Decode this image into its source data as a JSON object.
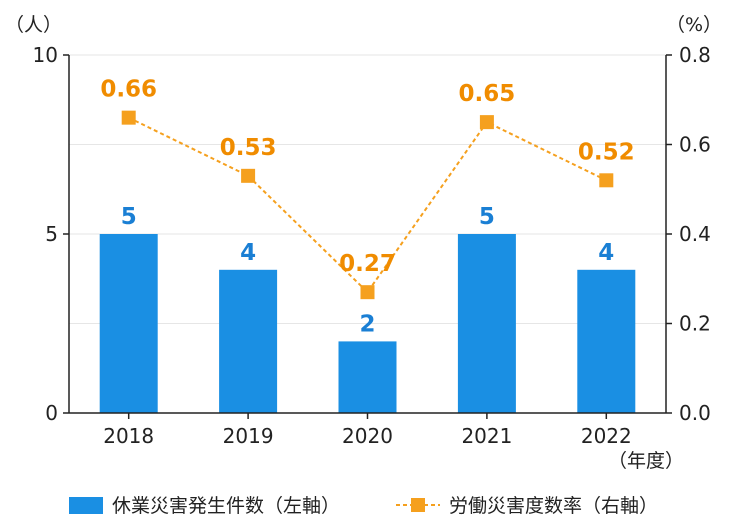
{
  "chart_data": {
    "type": "bar",
    "categories": [
      "2018",
      "2019",
      "2020",
      "2021",
      "2022"
    ],
    "series": [
      {
        "name": "休業災害発生件数（左軸）",
        "type": "bar",
        "axis": "left",
        "values": [
          5,
          4,
          2,
          5,
          4
        ],
        "color": "#1a8fe3",
        "label_color": "#1a7fd4"
      },
      {
        "name": "労働災害度数率（右軸）",
        "type": "line",
        "axis": "right",
        "values": [
          0.66,
          0.53,
          0.27,
          0.65,
          0.52
        ],
        "color": "#f5a01e",
        "label_color": "#f08c00"
      }
    ],
    "left_axis": {
      "unit": "（人）",
      "ylim": [
        0,
        10
      ],
      "ticks": [
        "0",
        "5",
        "10"
      ]
    },
    "right_axis": {
      "unit": "（%）",
      "ylim": [
        0,
        0.8
      ],
      "ticks": [
        "0.0",
        "0.2",
        "0.4",
        "0.6",
        "0.8"
      ]
    },
    "x_unit": "（年度）",
    "grid": true,
    "legend_position": "bottom"
  }
}
